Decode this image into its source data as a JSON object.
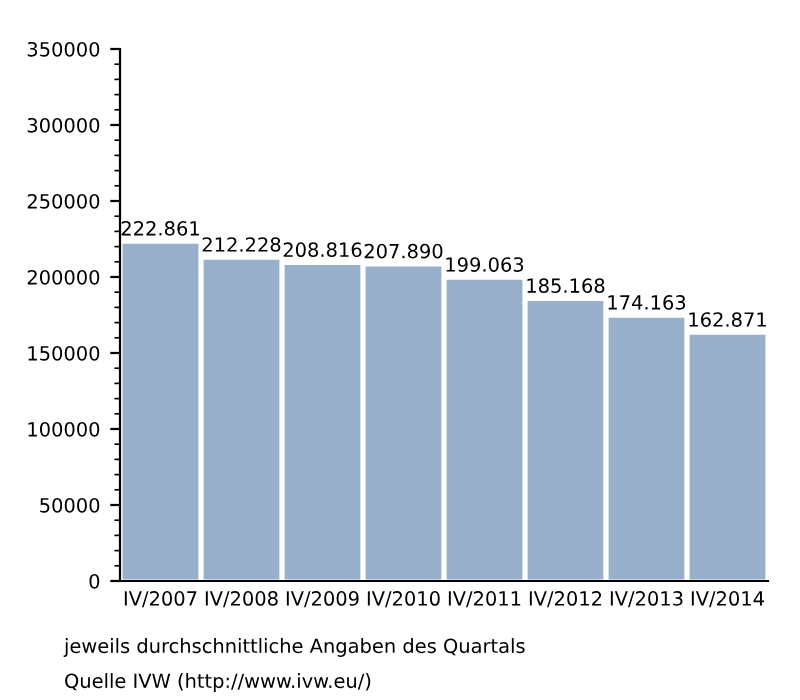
{
  "chart_data": {
    "type": "bar",
    "categories": [
      "IV/2007",
      "IV/2008",
      "IV/2009",
      "IV/2010",
      "IV/2011",
      "IV/2012",
      "IV/2013",
      "IV/2014"
    ],
    "values": [
      222861,
      212228,
      208816,
      207890,
      199063,
      185168,
      174163,
      162871
    ],
    "value_labels": [
      "222.861",
      "212.228",
      "208.816",
      "207.890",
      "199.063",
      "185.168",
      "174.163",
      "162.871"
    ],
    "color": "#98b0cc",
    "ylim": [
      0,
      350000
    ],
    "yticks": [
      0,
      50000,
      100000,
      150000,
      200000,
      250000,
      300000,
      350000
    ],
    "grid": false,
    "legend": false,
    "annotations": [
      "jeweils durchschnittliche Angaben des Quartals",
      "Quelle IVW (http://www.ivw.eu/)"
    ]
  }
}
